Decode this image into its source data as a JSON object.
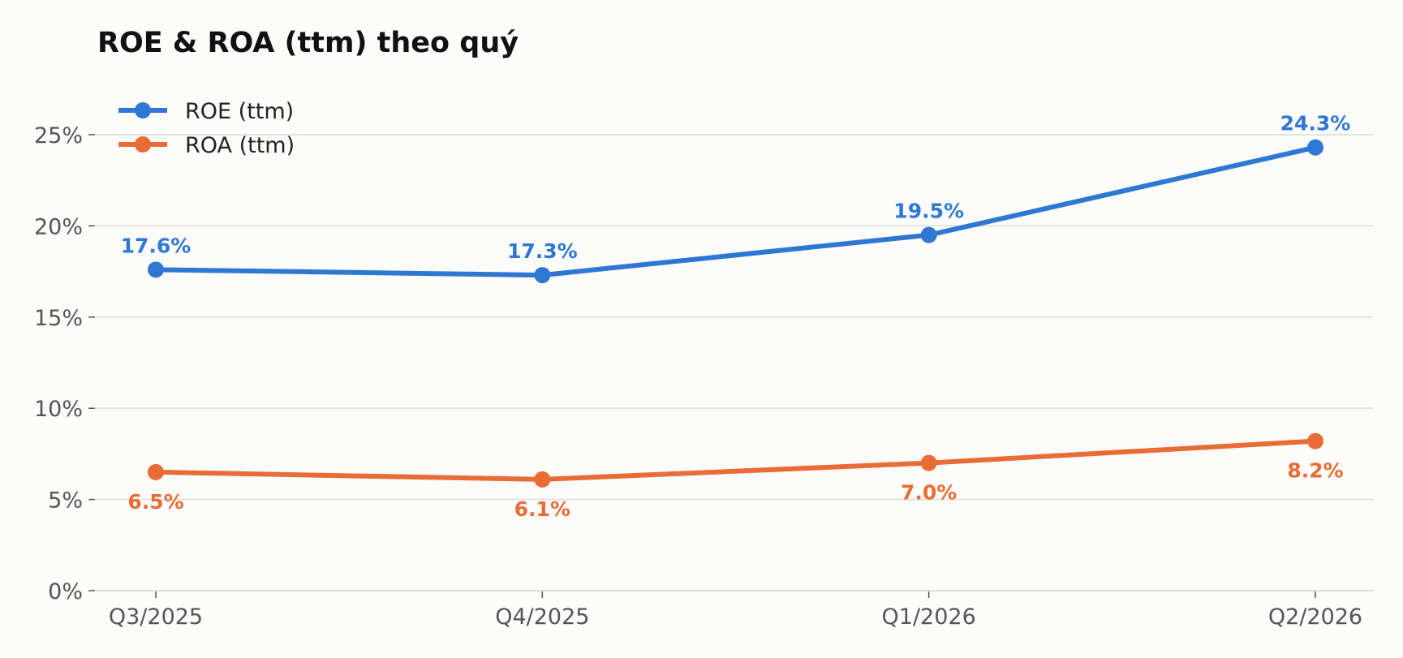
{
  "chart_data": {
    "type": "line",
    "title": "ROE & ROA (ttm) theo quý",
    "xlabel": "",
    "ylabel": "",
    "categories": [
      "Q3/2025",
      "Q4/2025",
      "Q1/2026",
      "Q2/2026"
    ],
    "ylim": [
      0,
      28
    ],
    "yticks": [
      0,
      5,
      10,
      15,
      20,
      25
    ],
    "ytick_labels": [
      "0%",
      "5%",
      "10%",
      "15%",
      "20%",
      "25%"
    ],
    "grid": "horizontal",
    "legend": "top-left",
    "series": [
      {
        "name": "ROE (ttm)",
        "color": "#2e78d4",
        "values": [
          17.6,
          17.3,
          19.5,
          24.3
        ],
        "labels": [
          "17.6%",
          "17.3%",
          "19.5%",
          "24.3%"
        ],
        "label_position": "above"
      },
      {
        "name": "ROA (ttm)",
        "color": "#e96c37",
        "values": [
          6.5,
          6.1,
          7.0,
          8.2
        ],
        "labels": [
          "6.5%",
          "6.1%",
          "7.0%",
          "8.2%"
        ],
        "label_position": "below"
      }
    ]
  }
}
